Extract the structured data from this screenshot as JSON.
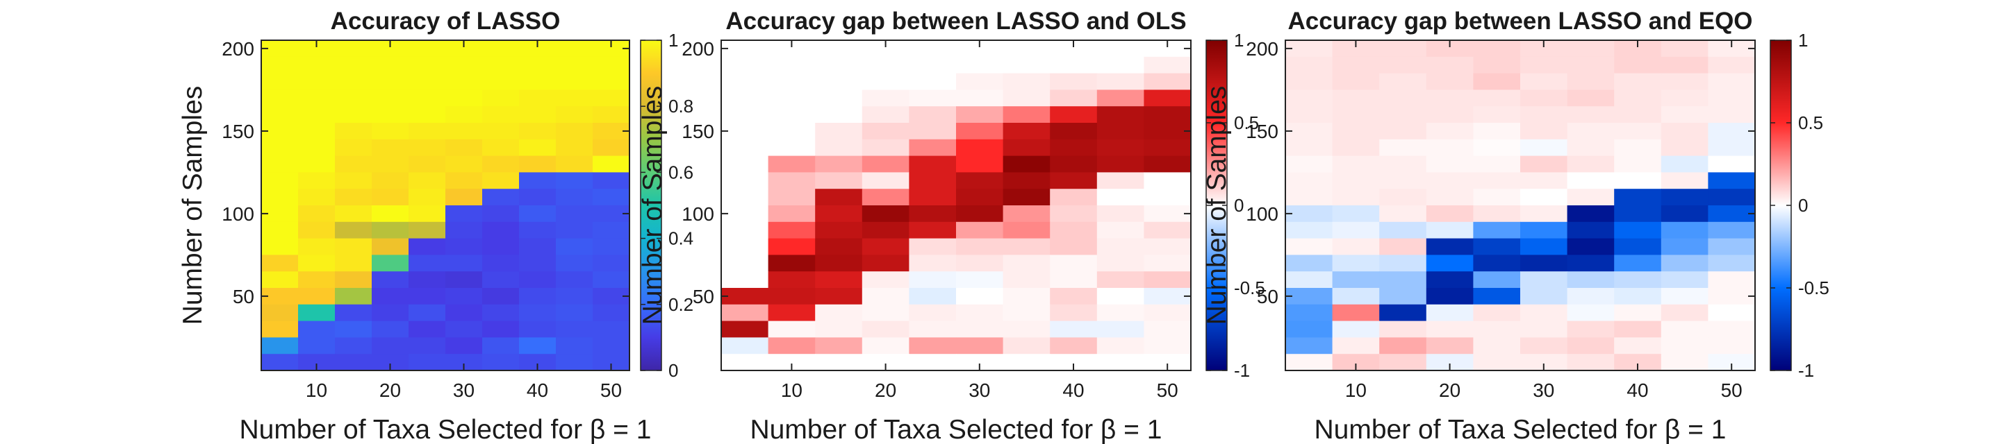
{
  "chart_data": [
    {
      "type": "heatmap",
      "title": "Accuracy of LASSO",
      "xlabel": "Number of Taxa Selected for β = 1",
      "ylabel": "Number of Samples",
      "x": [
        5,
        10,
        15,
        20,
        25,
        30,
        35,
        40,
        45,
        50
      ],
      "y": [
        200,
        190,
        180,
        170,
        160,
        150,
        140,
        130,
        120,
        110,
        100,
        90,
        80,
        70,
        60,
        50,
        40,
        30,
        20,
        10
      ],
      "xlim": [
        2.5,
        52.5
      ],
      "ylim": [
        5,
        205
      ],
      "xticks": [
        "10",
        "20",
        "30",
        "40",
        "50"
      ],
      "yticks": [
        "50",
        "100",
        "150",
        "200"
      ],
      "colormap": "parula",
      "clim": [
        0,
        1
      ],
      "colorbar_ticks": [
        "0",
        "0.2",
        "0.4",
        "0.6",
        "0.8",
        "1"
      ],
      "values": [
        [
          1,
          1,
          1,
          1,
          1,
          1,
          1,
          1,
          1,
          1
        ],
        [
          1,
          1,
          1,
          1,
          1,
          1,
          1,
          1,
          1,
          1
        ],
        [
          1,
          1,
          1,
          1,
          1,
          1,
          1,
          1,
          1,
          1
        ],
        [
          1,
          1,
          1,
          1,
          1,
          1,
          0.99,
          0.98,
          0.98,
          0.98
        ],
        [
          1,
          1,
          1,
          1,
          1,
          0.99,
          0.98,
          0.98,
          0.97,
          0.96
        ],
        [
          1,
          1,
          0.97,
          0.98,
          0.97,
          0.97,
          0.97,
          0.96,
          0.95,
          0.93
        ],
        [
          1,
          1,
          0.96,
          0.95,
          0.95,
          0.94,
          0.96,
          0.98,
          0.95,
          0.92
        ],
        [
          1,
          1,
          0.95,
          0.95,
          0.94,
          0.95,
          0.93,
          0.92,
          0.94,
          1
        ],
        [
          1,
          0.98,
          0.96,
          0.94,
          0.96,
          0.93,
          0.95,
          0.15,
          0.16,
          0.14
        ],
        [
          1,
          0.97,
          0.94,
          0.93,
          0.97,
          0.89,
          0.14,
          0.13,
          0.15,
          0.16
        ],
        [
          1,
          0.95,
          0.97,
          1,
          0.98,
          0.13,
          0.12,
          0.16,
          0.14,
          0.14
        ],
        [
          1,
          0.94,
          0.78,
          0.75,
          0.77,
          0.12,
          0.1,
          0.13,
          0.14,
          0.15
        ],
        [
          1,
          0.97,
          0.96,
          0.86,
          0.1,
          0.11,
          0.1,
          0.12,
          0.16,
          0.15
        ],
        [
          0.92,
          0.98,
          0.96,
          0.58,
          0.13,
          0.13,
          0.11,
          0.12,
          0.15,
          0.14
        ],
        [
          0.98,
          0.92,
          0.88,
          0.12,
          0.09,
          0.08,
          0.12,
          0.11,
          0.13,
          0.15
        ],
        [
          0.9,
          0.9,
          0.72,
          0.1,
          0.1,
          0.11,
          0.09,
          0.13,
          0.14,
          0.12
        ],
        [
          0.88,
          0.5,
          0.13,
          0.11,
          0.14,
          0.1,
          0.12,
          0.14,
          0.15,
          0.13
        ],
        [
          0.9,
          0.16,
          0.17,
          0.14,
          0.1,
          0.12,
          0.1,
          0.13,
          0.14,
          0.14
        ],
        [
          0.3,
          0.16,
          0.14,
          0.12,
          0.12,
          0.1,
          0.15,
          0.2,
          0.15,
          0.14
        ],
        [
          0.14,
          0.12,
          0.12,
          0.12,
          0.13,
          0.13,
          0.14,
          0.13,
          0.15,
          0.14
        ]
      ]
    },
    {
      "type": "heatmap",
      "title": "Accuracy gap between LASSO and OLS",
      "xlabel": "Number of Taxa Selected for β = 1",
      "ylabel": "Number of Samples",
      "x": [
        5,
        10,
        15,
        20,
        25,
        30,
        35,
        40,
        45,
        50
      ],
      "y": [
        200,
        190,
        180,
        170,
        160,
        150,
        140,
        130,
        120,
        110,
        100,
        90,
        80,
        70,
        60,
        50,
        40,
        30,
        20,
        10
      ],
      "xlim": [
        2.5,
        52.5
      ],
      "ylim": [
        5,
        205
      ],
      "xticks": [
        "10",
        "20",
        "30",
        "40",
        "50"
      ],
      "yticks": [
        "50",
        "100",
        "150",
        "200"
      ],
      "colormap": "blue-white-red",
      "clim": [
        -1,
        1
      ],
      "colorbar_ticks": [
        "-1",
        "-0.5",
        "0",
        "0.5",
        "1"
      ],
      "values": [
        [
          0,
          0,
          0,
          0,
          0,
          0,
          0,
          0,
          0,
          0
        ],
        [
          0,
          0,
          0,
          0,
          0,
          0,
          0,
          0,
          0,
          0.04
        ],
        [
          0,
          0,
          0,
          0,
          0,
          0.03,
          0.04,
          0.06,
          0.05,
          0.1
        ],
        [
          0,
          0,
          0,
          0.03,
          0.02,
          0.02,
          0.04,
          0.1,
          0.26,
          0.62
        ],
        [
          0,
          0,
          0,
          0.05,
          0.1,
          0.2,
          0.32,
          0.6,
          0.8,
          0.82
        ],
        [
          0,
          0,
          0.05,
          0.1,
          0.1,
          0.35,
          0.7,
          0.85,
          0.8,
          0.82
        ],
        [
          0,
          0,
          0.05,
          0.08,
          0.28,
          0.5,
          0.75,
          0.82,
          0.78,
          0.8
        ],
        [
          0,
          0.25,
          0.2,
          0.28,
          0.65,
          0.5,
          0.95,
          0.85,
          0.8,
          0.85
        ],
        [
          0,
          0.15,
          0.12,
          0.05,
          0.65,
          0.78,
          0.85,
          0.78,
          0.06,
          0
        ],
        [
          0,
          0.15,
          0.75,
          0.3,
          0.65,
          0.8,
          0.9,
          0.12,
          0,
          0
        ],
        [
          0,
          0.2,
          0.7,
          0.9,
          0.8,
          0.85,
          0.25,
          0.1,
          0.05,
          0.02
        ],
        [
          0,
          0.4,
          0.75,
          0.8,
          0.68,
          0.22,
          0.28,
          0.12,
          0.03,
          0.08
        ],
        [
          0,
          0.5,
          0.8,
          0.7,
          0.08,
          0.1,
          0.1,
          0.12,
          0.04,
          0.04
        ],
        [
          0,
          0.9,
          0.82,
          0.75,
          0.05,
          0.06,
          0.04,
          0.02,
          0.04,
          0.03
        ],
        [
          0,
          0.7,
          0.65,
          0.04,
          -0.03,
          -0.02,
          0.04,
          0.02,
          0.1,
          0.12
        ],
        [
          0.72,
          0.72,
          0.7,
          0.02,
          -0.06,
          0,
          0.02,
          0.1,
          0,
          -0.04
        ],
        [
          0.2,
          0.6,
          0.03,
          0.02,
          0.04,
          0.03,
          0.02,
          0.08,
          0.02,
          0.03
        ],
        [
          0.8,
          0.02,
          0.03,
          0.05,
          0.03,
          0.03,
          0.03,
          -0.04,
          -0.04,
          0.02
        ],
        [
          -0.05,
          0.25,
          0.2,
          0.02,
          0.22,
          0.22,
          0.06,
          0.14,
          0.03,
          0.02
        ],
        [
          0,
          0,
          0,
          0,
          0,
          0,
          0,
          0,
          0,
          0
        ]
      ]
    },
    {
      "type": "heatmap",
      "title": "Accuracy gap between LASSO and EQO",
      "xlabel": "Number of Taxa Selected for β = 1",
      "ylabel": "Number of Samples",
      "x": [
        5,
        10,
        15,
        20,
        25,
        30,
        35,
        40,
        45,
        50
      ],
      "y": [
        200,
        190,
        180,
        170,
        160,
        150,
        140,
        130,
        120,
        110,
        100,
        90,
        80,
        70,
        60,
        50,
        40,
        30,
        20,
        10
      ],
      "xlim": [
        2.5,
        52.5
      ],
      "ylim": [
        5,
        205
      ],
      "xticks": [
        "10",
        "20",
        "30",
        "40",
        "50"
      ],
      "yticks": [
        "50",
        "100",
        "150",
        "200"
      ],
      "colormap": "blue-white-red",
      "clim": [
        -1,
        1
      ],
      "colorbar_ticks": [
        "-1",
        "-0.5",
        "0",
        "0.5",
        "1"
      ],
      "values": [
        [
          0.05,
          0.08,
          0.08,
          0.1,
          0.1,
          0.08,
          0.08,
          0.1,
          0.08,
          0.04
        ],
        [
          0.06,
          0.08,
          0.08,
          0.08,
          0.1,
          0.08,
          0.08,
          0.1,
          0.1,
          0.06
        ],
        [
          0.06,
          0.08,
          0.06,
          0.08,
          0.12,
          0.06,
          0.08,
          0.06,
          0.06,
          0.04
        ],
        [
          0.05,
          0.06,
          0.06,
          0.06,
          0.06,
          0.08,
          0.1,
          0.06,
          0.05,
          0.04
        ],
        [
          0.05,
          0.06,
          0.06,
          0.06,
          0.05,
          0.06,
          0.06,
          0.06,
          0.04,
          0.04
        ],
        [
          0.04,
          0.06,
          0.06,
          0.04,
          0.02,
          0.06,
          0.04,
          0.04,
          0.06,
          -0.04
        ],
        [
          0.04,
          0.06,
          0.02,
          0.02,
          0.01,
          -0.02,
          0.04,
          0.02,
          0.06,
          -0.04
        ],
        [
          0.02,
          0.04,
          0.04,
          0.02,
          0.02,
          0.1,
          0.06,
          0.02,
          -0.06,
          0
        ],
        [
          0.03,
          0.04,
          0.04,
          0.04,
          0.04,
          0.04,
          0,
          0,
          0.04,
          -0.6
        ],
        [
          0.03,
          0.04,
          0.05,
          0.04,
          0.02,
          0,
          0.04,
          -0.7,
          -0.74,
          -0.74
        ],
        [
          -0.1,
          -0.08,
          0.04,
          0.1,
          0.06,
          0.04,
          -0.9,
          -0.7,
          -0.78,
          -0.6
        ],
        [
          -0.06,
          -0.04,
          -0.1,
          -0.06,
          -0.34,
          -0.42,
          -0.8,
          -0.54,
          -0.36,
          -0.3
        ],
        [
          0.02,
          0.04,
          0.1,
          -0.8,
          -0.7,
          -0.55,
          -0.9,
          -0.62,
          -0.34,
          -0.2
        ],
        [
          -0.16,
          -0.08,
          -0.1,
          -0.5,
          -0.78,
          -0.82,
          -0.8,
          -0.4,
          -0.2,
          -0.15
        ],
        [
          -0.06,
          -0.2,
          -0.2,
          -0.82,
          -0.3,
          -0.1,
          -0.14,
          -0.12,
          -0.1,
          0.02
        ],
        [
          -0.3,
          -0.08,
          -0.2,
          -0.85,
          -0.6,
          -0.1,
          -0.04,
          -0.06,
          -0.02,
          0.02
        ],
        [
          -0.35,
          0.3,
          -0.8,
          -0.04,
          0.06,
          0.04,
          -0.02,
          0.02,
          0.06,
          0
        ],
        [
          -0.36,
          -0.04,
          0.06,
          0.04,
          0.04,
          0.04,
          0.08,
          0.1,
          0.02,
          0.02
        ],
        [
          -0.32,
          0.04,
          0.2,
          0.14,
          0.04,
          0.08,
          0.1,
          0.04,
          0.02,
          0.02
        ],
        [
          0.02,
          0.12,
          0.1,
          -0.04,
          0.04,
          0.04,
          0.06,
          0.1,
          0.02,
          -0.02
        ]
      ]
    }
  ]
}
